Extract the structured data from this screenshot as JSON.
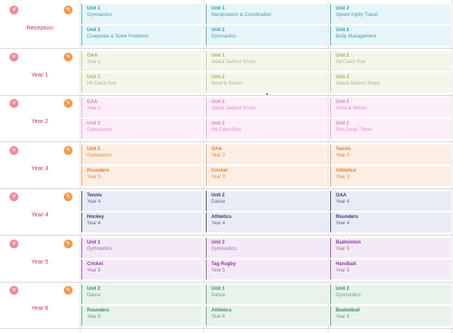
{
  "rows": [
    {
      "year": "Reception",
      "bg": "#e6f6f8",
      "border": "#3bb3c3",
      "text": "#2d9aab",
      "sub": "#4a9aa6",
      "cells": [
        [
          {
            "title": "Unit 1",
            "sub": "Gymnastics"
          },
          {
            "title": "Unit 2",
            "sub": "Cooperate & Solve Problems"
          }
        ],
        [
          {
            "title": "Unit 1",
            "sub": "Manipulation & Coordination"
          },
          {
            "title": "Unit 2",
            "sub": "Gymnastics"
          }
        ],
        [
          {
            "title": "Unit 2",
            "sub": "Speed Agility Travel"
          },
          {
            "title": "Unit 2",
            "sub": "Body Management"
          }
        ]
      ]
    },
    {
      "year": "Year 1",
      "bg": "#f3f7ea",
      "border": "#b9cc8f",
      "text": "#9bb06b",
      "sub": "#a6b48a",
      "cells": [
        [
          {
            "title": "OAA",
            "sub": "Year 1"
          },
          {
            "title": "Unit 1",
            "sub": "Hit Catch Run"
          }
        ],
        [
          {
            "title": "Unit 1",
            "sub": "Attack Defend Shoot"
          },
          {
            "title": "Unit 2",
            "sub": "Send & Return"
          }
        ],
        [
          {
            "title": "Unit 2",
            "sub": "Hit Catch Run"
          },
          {
            "title": "Unit 2",
            "sub": "Attack Defend Shoot"
          }
        ]
      ]
    },
    {
      "year": "Year 2",
      "bg": "#fdeef8",
      "border": "#f3a2d8",
      "text": "#e07cc0",
      "sub": "#e08bc5",
      "cells": [
        [
          {
            "title": "OAA",
            "sub": "Year 2"
          },
          {
            "title": "Unit 2",
            "sub": "Gymnastics"
          }
        ],
        [
          {
            "title": "Unit 2",
            "sub": "Attack Defend Shoot"
          },
          {
            "title": "Unit 2",
            "sub": "Hit Catch Run"
          }
        ],
        [
          {
            "title": "Unit 2",
            "sub": "Send & Return"
          },
          {
            "title": "Unit 2",
            "sub": "Run Jump Throw"
          }
        ]
      ]
    },
    {
      "year": "Year 3",
      "bg": "#fdeee2",
      "border": "#f1a26a",
      "text": "#e07a30",
      "sub": "#d98850",
      "cells": [
        [
          {
            "title": "Unit 2",
            "sub": "Gymnastics"
          },
          {
            "title": "Rounders",
            "sub": "Year 3"
          }
        ],
        [
          {
            "title": "OAA",
            "sub": "Year 3"
          },
          {
            "title": "Cricket",
            "sub": "Year 3"
          }
        ],
        [
          {
            "title": "Tennis",
            "sub": "Year 3"
          },
          {
            "title": "Athletics",
            "sub": "Year 3"
          }
        ]
      ]
    },
    {
      "year": "Year 4",
      "bg": "#e9ecf4",
      "border": "#3b4f86",
      "text": "#2f3f6e",
      "sub": "#5b6788",
      "cells": [
        [
          {
            "title": "Tennis",
            "sub": "Year 4"
          },
          {
            "title": "Hockey",
            "sub": "Year 4"
          }
        ],
        [
          {
            "title": "Unit 2",
            "sub": "Dance"
          },
          {
            "title": "Athletics",
            "sub": "Year 4"
          }
        ],
        [
          {
            "title": "OAA",
            "sub": "Year 4"
          },
          {
            "title": "Rounders",
            "sub": "Year 4"
          }
        ]
      ]
    },
    {
      "year": "Year 5",
      "bg": "#f4eaf7",
      "border": "#a44bb8",
      "text": "#8c3aa0",
      "sub": "#9a6aa8",
      "cells": [
        [
          {
            "title": "Unit 1",
            "sub": "Gymnastics"
          },
          {
            "title": "Cricket",
            "sub": "Year 5"
          }
        ],
        [
          {
            "title": "Unit 2",
            "sub": "Gymnastics"
          },
          {
            "title": "Tag Rugby",
            "sub": "Year 5"
          }
        ],
        [
          {
            "title": "Badminton",
            "sub": "Year 5"
          },
          {
            "title": "Handball",
            "sub": "Year 5"
          }
        ]
      ]
    },
    {
      "year": "Year 6",
      "bg": "#e8f3ec",
      "border": "#5aa472",
      "text": "#3f8a58",
      "sub": "#6a9c7a",
      "cells": [
        [
          {
            "title": "Unit 2",
            "sub": "Dance"
          },
          {
            "title": "Rounders",
            "sub": "Year 6"
          }
        ],
        [
          {
            "title": "Unit 1",
            "sub": "Dance"
          },
          {
            "title": "Athletics",
            "sub": "Year 6"
          }
        ],
        [
          {
            "title": "Unit 2",
            "sub": "Gymnastics"
          },
          {
            "title": "Basketball",
            "sub": "Year 6"
          }
        ]
      ]
    }
  ],
  "icons": {
    "delete": "close-icon",
    "edit": "edit-icon"
  }
}
